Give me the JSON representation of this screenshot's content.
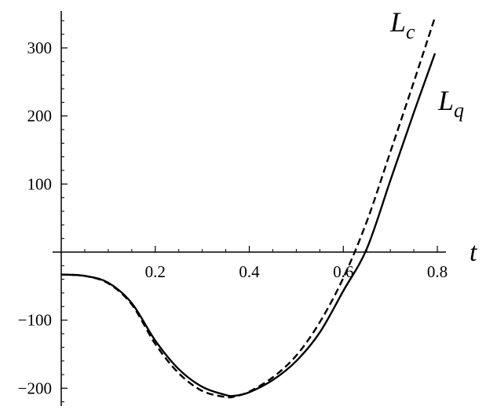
{
  "chart_data": {
    "type": "line",
    "title": "",
    "xlabel": "t",
    "ylabel": "",
    "xlim": [
      0,
      0.8
    ],
    "ylim": [
      -220,
      350
    ],
    "xticks": [
      {
        "value": 0.2,
        "label": "0.2"
      },
      {
        "value": 0.4,
        "label": "0.4"
      },
      {
        "value": 0.6,
        "label": "0.6"
      },
      {
        "value": 0.8,
        "label": "0.8"
      }
    ],
    "yticks": [
      {
        "value": -200,
        "label": "−200"
      },
      {
        "value": -100,
        "label": "−100"
      },
      {
        "value": 100,
        "label": "100"
      },
      {
        "value": 200,
        "label": "200"
      },
      {
        "value": 300,
        "label": "300"
      }
    ],
    "grid": false,
    "legend": "none",
    "series": [
      {
        "name": "L_q",
        "label_main": "L",
        "label_sub": "q",
        "style": "solid",
        "color": "#000000",
        "x": [
          0.0,
          0.05,
          0.1,
          0.15,
          0.2,
          0.25,
          0.3,
          0.35,
          0.37,
          0.4,
          0.45,
          0.5,
          0.55,
          0.6,
          0.65,
          0.7,
          0.75,
          0.795
        ],
        "y": [
          -33,
          -35,
          -45,
          -75,
          -130,
          -172,
          -198,
          -210,
          -211,
          -206,
          -188,
          -160,
          -118,
          -57,
          5,
          105,
          205,
          292
        ]
      },
      {
        "name": "L_c",
        "label_main": "L",
        "label_sub": "c",
        "style": "dashed",
        "color": "#000000",
        "x": [
          0.0,
          0.05,
          0.1,
          0.15,
          0.2,
          0.25,
          0.3,
          0.35,
          0.37,
          0.4,
          0.45,
          0.5,
          0.55,
          0.6,
          0.65,
          0.7,
          0.75,
          0.795
        ],
        "y": [
          -33,
          -35,
          -46,
          -77,
          -135,
          -178,
          -204,
          -213,
          -212,
          -205,
          -184,
          -152,
          -103,
          -38,
          45,
          147,
          250,
          345
        ]
      }
    ]
  }
}
